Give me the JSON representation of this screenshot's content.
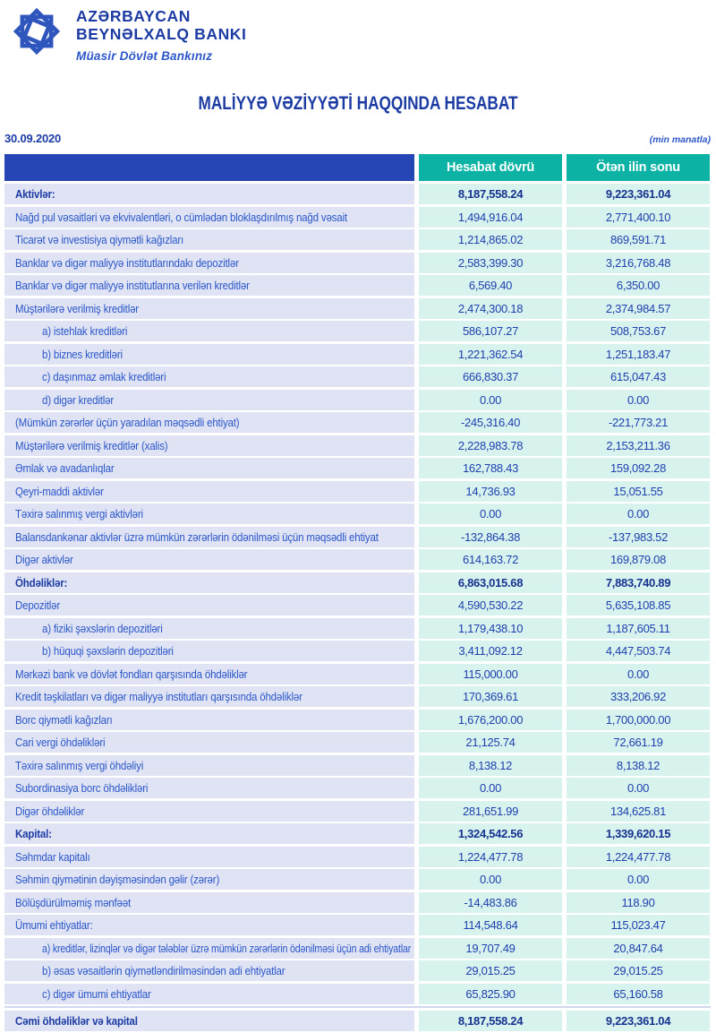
{
  "colors": {
    "blue": "#2546b4",
    "teal": "#0cb3a4",
    "lavender": "#dfe3f4",
    "mint": "#d8f2ee",
    "bright": "#2b57c8",
    "navy": "#1d3ca3",
    "valtext": "#1e41ad",
    "navyval": "#16338f",
    "sep": "#cfd8ef",
    "logo": "#2e56bd"
  },
  "brand": {
    "bank_name_line1": "AZƏRBAYCAN",
    "bank_name_line2": "BEYNƏLXALQ BANKI",
    "tagline": "Müasir Dövlət Bankınız",
    "logo_icon": "eight-point-star-knot"
  },
  "report": {
    "title": "MALİYYƏ VƏZİYYƏTİ HAQQINDA HESABAT",
    "date": "30.09.2020",
    "unit_note": "(min manatla)"
  },
  "table": {
    "columns": [
      "Hesabat dövrü",
      "Ötən ilin sonu"
    ],
    "rows": [
      {
        "label": "Aktivlər:",
        "current": "8,187,558.24",
        "previous": "9,223,361.04",
        "bold": true,
        "indent": false
      },
      {
        "label": "Nağd pul vəsaitləri və ekvivalentləri, o cümlədən bloklaşdırılmış nağd vəsait",
        "current": "1,494,916.04",
        "previous": "2,771,400.10",
        "bold": false,
        "indent": false
      },
      {
        "label": "Ticarət və investisiya qiymətli kağızları",
        "current": "1,214,865.02",
        "previous": "869,591.71",
        "bold": false,
        "indent": false
      },
      {
        "label": "Banklar və digər maliyyə institutlarındakı depozitlər",
        "current": "2,583,399.30",
        "previous": "3,216,768.48",
        "bold": false,
        "indent": false
      },
      {
        "label": "Banklar və digər maliyyə institutlarına verilən kreditlər",
        "current": "6,569.40",
        "previous": "6,350.00",
        "bold": false,
        "indent": false
      },
      {
        "label": "Müştərilərə verilmiş kreditlər",
        "current": "2,474,300.18",
        "previous": "2,374,984.57",
        "bold": false,
        "indent": false
      },
      {
        "label": "a) istehlak kreditləri",
        "current": "586,107.27",
        "previous": "508,753.67",
        "bold": false,
        "indent": true
      },
      {
        "label": "b) biznes kreditləri",
        "current": "1,221,362.54",
        "previous": "1,251,183.47",
        "bold": false,
        "indent": true
      },
      {
        "label": "c) daşınmaz əmlak kreditləri",
        "current": "666,830.37",
        "previous": "615,047.43",
        "bold": false,
        "indent": true
      },
      {
        "label": "d) digər kreditlər",
        "current": "0.00",
        "previous": "0.00",
        "bold": false,
        "indent": true
      },
      {
        "label": "(Mümkün zərərlər üçün yaradılan məqsədli ehtiyat)",
        "current": "-245,316.40",
        "previous": "-221,773.21",
        "bold": false,
        "indent": false
      },
      {
        "label": "Müştərilərə verilmiş kreditlər (xalis)",
        "current": "2,228,983.78",
        "previous": "2,153,211.36",
        "bold": false,
        "indent": false
      },
      {
        "label": "Əmlak və avadanlıqlar",
        "current": "162,788.43",
        "previous": "159,092.28",
        "bold": false,
        "indent": false
      },
      {
        "label": "Qeyri-maddi aktivlər",
        "current": "14,736.93",
        "previous": "15,051.55",
        "bold": false,
        "indent": false
      },
      {
        "label": "Təxirə salınmış vergi aktivləri",
        "current": "0.00",
        "previous": "0.00",
        "bold": false,
        "indent": false
      },
      {
        "label": "Balansdankənar aktivlər üzrə mümkün zərərlərin ödənilməsi üçün məqsədli ehtiyat",
        "current": "-132,864.38",
        "previous": "-137,983.52",
        "bold": false,
        "indent": false
      },
      {
        "label": "Digər aktivlər",
        "current": "614,163.72",
        "previous": "169,879.08",
        "bold": false,
        "indent": false
      },
      {
        "label": "Öhdəliklər:",
        "current": "6,863,015.68",
        "previous": "7,883,740.89",
        "bold": true,
        "indent": false
      },
      {
        "label": "Depozitlər",
        "current": "4,590,530.22",
        "previous": "5,635,108.85",
        "bold": false,
        "indent": false
      },
      {
        "label": "a) fiziki şəxslərin depozitləri",
        "current": "1,179,438.10",
        "previous": "1,187,605.11",
        "bold": false,
        "indent": true
      },
      {
        "label": "b) hüquqi şəxslərin depozitləri",
        "current": "3,411,092.12",
        "previous": "4,447,503.74",
        "bold": false,
        "indent": true
      },
      {
        "label": "Mərkəzi bank və dövlət fondları qarşısında öhdəliklər",
        "current": "115,000.00",
        "previous": "0.00",
        "bold": false,
        "indent": false
      },
      {
        "label": "Kredit təşkilatları və digər maliyyə institutları qarşısında öhdəliklər",
        "current": "170,369.61",
        "previous": "333,206.92",
        "bold": false,
        "indent": false
      },
      {
        "label": "Borc qiymətli kağızları",
        "current": "1,676,200.00",
        "previous": "1,700,000.00",
        "bold": false,
        "indent": false
      },
      {
        "label": "Cari vergi öhdəlikləri",
        "current": "21,125.74",
        "previous": "72,661.19",
        "bold": false,
        "indent": false
      },
      {
        "label": "Təxirə salınmış vergi öhdəliyi",
        "current": "8,138.12",
        "previous": "8,138.12",
        "bold": false,
        "indent": false
      },
      {
        "label": "Subordinasiya borc öhdəlikləri",
        "current": "0.00",
        "previous": "0.00",
        "bold": false,
        "indent": false
      },
      {
        "label": "Digər öhdəliklər",
        "current": "281,651.99",
        "previous": "134,625.81",
        "bold": false,
        "indent": false
      },
      {
        "label": "Kapital:",
        "current": "1,324,542.56",
        "previous": "1,339,620.15",
        "bold": true,
        "indent": false
      },
      {
        "label": "Səhmdar kapitalı",
        "current": "1,224,477.78",
        "previous": "1,224,477.78",
        "bold": false,
        "indent": false
      },
      {
        "label": "Səhmin qiymətinin dəyişməsindən gəlir (zərər)",
        "current": "0.00",
        "previous": "0.00",
        "bold": false,
        "indent": false
      },
      {
        "label": "Bölüşdürülməmiş mənfəət",
        "current": "-14,483.86",
        "previous": "118.90",
        "bold": false,
        "indent": false
      },
      {
        "label": "Ümumi ehtiyatlar:",
        "current": "114,548.64",
        "previous": "115,023.47",
        "bold": false,
        "indent": false
      },
      {
        "label": "a) kreditlər, lizinqlər və digər tələblər üzrə mümkün zərərlərin ödənilməsi üçün adi ehtiyatlar",
        "current": "19,707.49",
        "previous": "20,847.64",
        "bold": false,
        "indent": true
      },
      {
        "label": "b) əsas vəsaitlərin qiymətləndirilməsindən adi ehtiyatlar",
        "current": "29,015.25",
        "previous": "29,015.25",
        "bold": false,
        "indent": true
      },
      {
        "label": "c) digər ümumi ehtiyatlar",
        "current": "65,825.90",
        "previous": "65,160.58",
        "bold": false,
        "indent": true
      },
      {
        "label": "Cəmi öhdəliklər və kapital",
        "current": "8,187,558.24",
        "previous": "9,223,361.04",
        "bold": true,
        "indent": false,
        "total": true
      }
    ]
  }
}
